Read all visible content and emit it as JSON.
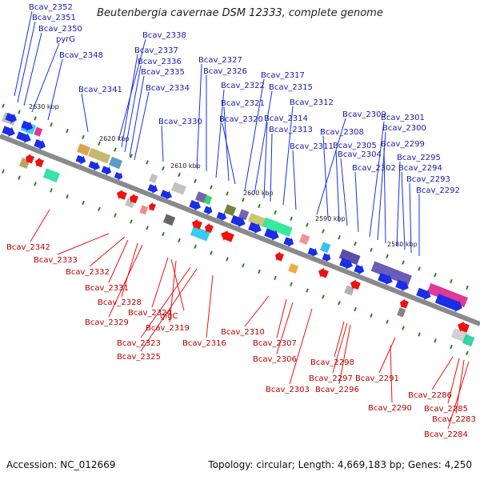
{
  "title": "Beutenbergia cavernae DSM 12333, complete genome",
  "footer": {
    "accession": "Accession: NC_012669",
    "summary": "Topology: circular; Length: 4,669,183 bp; Genes: 4,250"
  },
  "colors": {
    "forward": "#1a2ee6",
    "reverse": "#ee1111",
    "backbone": "#888888",
    "tick": "#228822"
  },
  "kbp_labels": [
    "2630 kbp",
    "2620 kbp",
    "2610 kbp",
    "2600 kbp",
    "2590 kbp",
    "2580 kbp"
  ],
  "forward_genes": [
    "Bcav_2352",
    "Bcav_2351",
    "Bcav_2350",
    "pyrG",
    "Bcav_2348",
    "Bcav_2341",
    "Bcav_2338",
    "Bcav_2337",
    "Bcav_2336",
    "Bcav_2335",
    "Bcav_2334",
    "Bcav_2330",
    "Bcav_2327",
    "Bcav_2326",
    "Bcav_2322",
    "Bcav_2321",
    "Bcav_2320",
    "Bcav_2317",
    "Bcav_2315",
    "Bcav_2314",
    "Bcav_2313",
    "Bcav_2312",
    "Bcav_2311",
    "Bcav_2309",
    "Bcav_2308",
    "Bcav_2305",
    "Bcav_2304",
    "Bcav_2302",
    "Bcav_2301",
    "Bcav_2300",
    "Bcav_2299",
    "Bcav_2295",
    "Bcav_2294",
    "Bcav_2293",
    "Bcav_2292"
  ],
  "reverse_genes": [
    "Bcav_2342",
    "Bcav_2333",
    "Bcav_2332",
    "Bcav_2331",
    "Bcav_2328",
    "Bcav_2329",
    "Bcav_2324",
    "glgC",
    "Bcav_2319",
    "Bcav_2323",
    "Bcav_2325",
    "Bcav_2316",
    "Bcav_2310",
    "Bcav_2307",
    "Bcav_2306",
    "Bcav_2303",
    "Bcav_2298",
    "Bcav_2297",
    "Bcav_2296",
    "Bcav_2291",
    "Bcav_2290",
    "Bcav_2286",
    "Bcav_2285",
    "Bcav_2283",
    "Bcav_2284"
  ]
}
